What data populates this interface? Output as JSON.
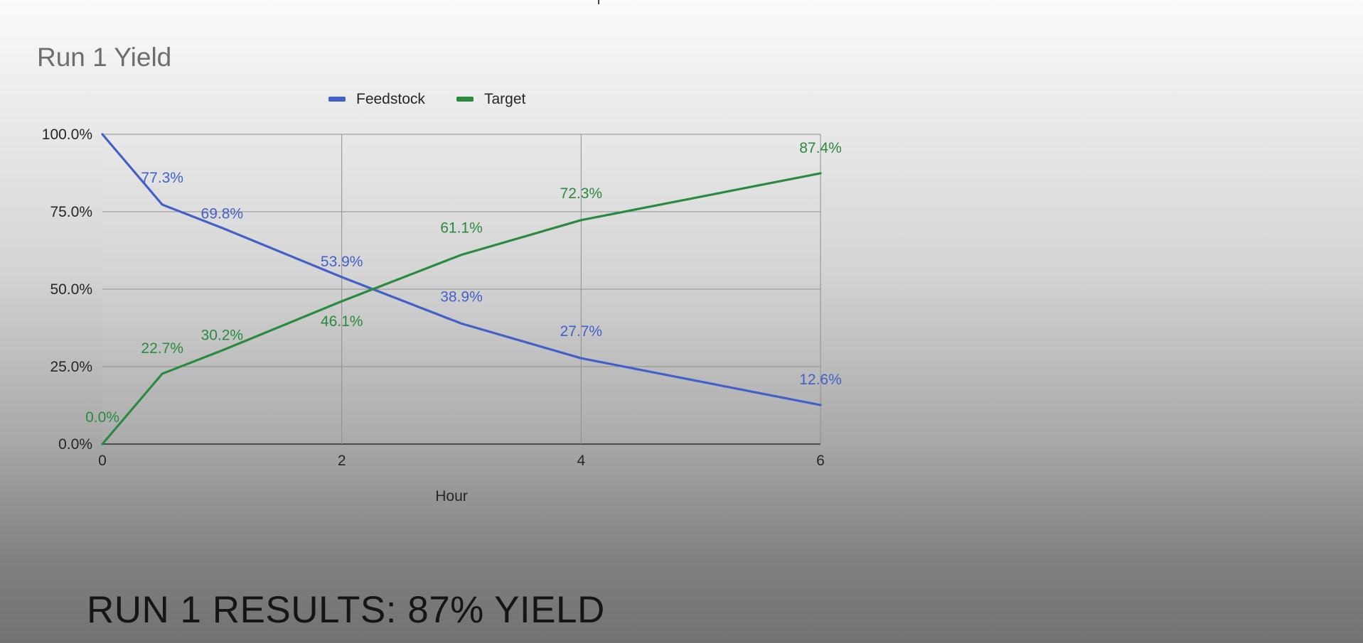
{
  "caption": "RUN 1 RESULTS: 87% YIELD",
  "chart_data": {
    "type": "line",
    "title": "Run 1 Yield",
    "xlabel": "Hour",
    "ylabel": "",
    "x_ticks": [
      "0",
      "2",
      "4",
      "6"
    ],
    "y_ticks": [
      "0.0%",
      "25.0%",
      "50.0%",
      "75.0%",
      "100.0%"
    ],
    "xlim": [
      0,
      6
    ],
    "ylim": [
      0,
      100
    ],
    "grid": true,
    "legend_position": "top",
    "x": [
      0,
      0.5,
      1,
      2,
      3,
      4,
      6
    ],
    "series": [
      {
        "name": "Feedstock",
        "color": "#4360c9",
        "values": [
          100,
          77.3,
          69.8,
          53.9,
          38.9,
          27.7,
          12.6
        ],
        "labels": [
          "",
          "77.3%",
          "69.8%",
          "53.9%",
          "38.9%",
          "27.7%",
          "12.6%"
        ]
      },
      {
        "name": "Target",
        "color": "#2a8a3f",
        "values": [
          0,
          22.7,
          30.2,
          46.1,
          61.1,
          72.3,
          87.4
        ],
        "labels": [
          "0.0%",
          "22.7%",
          "30.2%",
          "46.1%",
          "61.1%",
          "72.3%",
          "87.4%"
        ]
      }
    ]
  }
}
